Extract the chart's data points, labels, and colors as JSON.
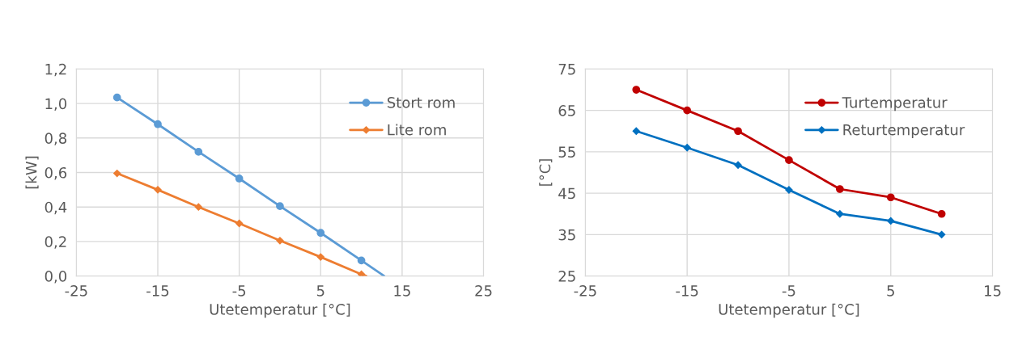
{
  "chart_data": [
    {
      "type": "line",
      "xlabel": "Utetemperatur [°C]",
      "ylabel": "[kW]",
      "xlim": [
        -25,
        25
      ],
      "xticks": [
        -25,
        -15,
        -5,
        5,
        15,
        25
      ],
      "ylim": [
        0,
        1.2
      ],
      "yticks": [
        {
          "value": 0,
          "label": "0,0"
        },
        {
          "value": 0.2,
          "label": "0,2"
        },
        {
          "value": 0.4,
          "label": "0,4"
        },
        {
          "value": 0.6,
          "label": "0,6"
        },
        {
          "value": 0.8,
          "label": "0,8"
        },
        {
          "value": 1.0,
          "label": "1,0"
        },
        {
          "value": 1.2,
          "label": "1,2"
        }
      ],
      "grid": true,
      "legend": "top right",
      "line_style": "solid",
      "series": [
        {
          "name": "Stort rom",
          "color": "#5b9bd5",
          "marker": "circle",
          "x": [
            -20,
            -15,
            -10,
            -5,
            0,
            5,
            10
          ],
          "values": [
            1.035,
            0.88,
            0.72,
            0.565,
            0.405,
            0.25,
            0.09
          ]
        },
        {
          "name": "Lite rom",
          "color": "#ed7d31",
          "marker": "diamond",
          "x": [
            -20,
            -15,
            -10,
            -5,
            0,
            5,
            10
          ],
          "values": [
            0.595,
            0.5,
            0.4,
            0.305,
            0.205,
            0.11,
            0.01
          ]
        },
        {
          "type": "line",
          "color": "#5b9bd5",
          "marker": "none",
          "x": [
            10,
            12.8
          ],
          "values": [
            0.09,
            0
          ]
        },
        {
          "type": "line",
          "color": "#ed7d31",
          "marker": "none",
          "x": [
            10,
            10.6
          ],
          "values": [
            0.01,
            0
          ]
        }
      ]
    },
    {
      "type": "line",
      "xlabel": "Utetemperatur [°C]",
      "ylabel": "[°C]",
      "xlim": [
        -25,
        15
      ],
      "xticks": [
        -25,
        -15,
        -5,
        5,
        15
      ],
      "ylim": [
        25,
        75
      ],
      "yticks": [
        25,
        35,
        45,
        55,
        65,
        75
      ],
      "grid": true,
      "legend": "top right",
      "line_style": "solid",
      "series": [
        {
          "name": "Turtemperatur",
          "color": "#c00000",
          "marker": "circle",
          "x": [
            -20,
            -15,
            -10,
            -5,
            0,
            5,
            10
          ],
          "values": [
            70,
            65,
            60,
            53,
            46,
            44,
            40
          ]
        },
        {
          "name": "Returtemperatur",
          "color": "#0070c0",
          "marker": "diamond",
          "x": [
            -20,
            -15,
            -10,
            -5,
            0,
            5,
            10
          ],
          "values": [
            60,
            56,
            51.8,
            45.8,
            40,
            38.3,
            35
          ]
        }
      ]
    }
  ]
}
